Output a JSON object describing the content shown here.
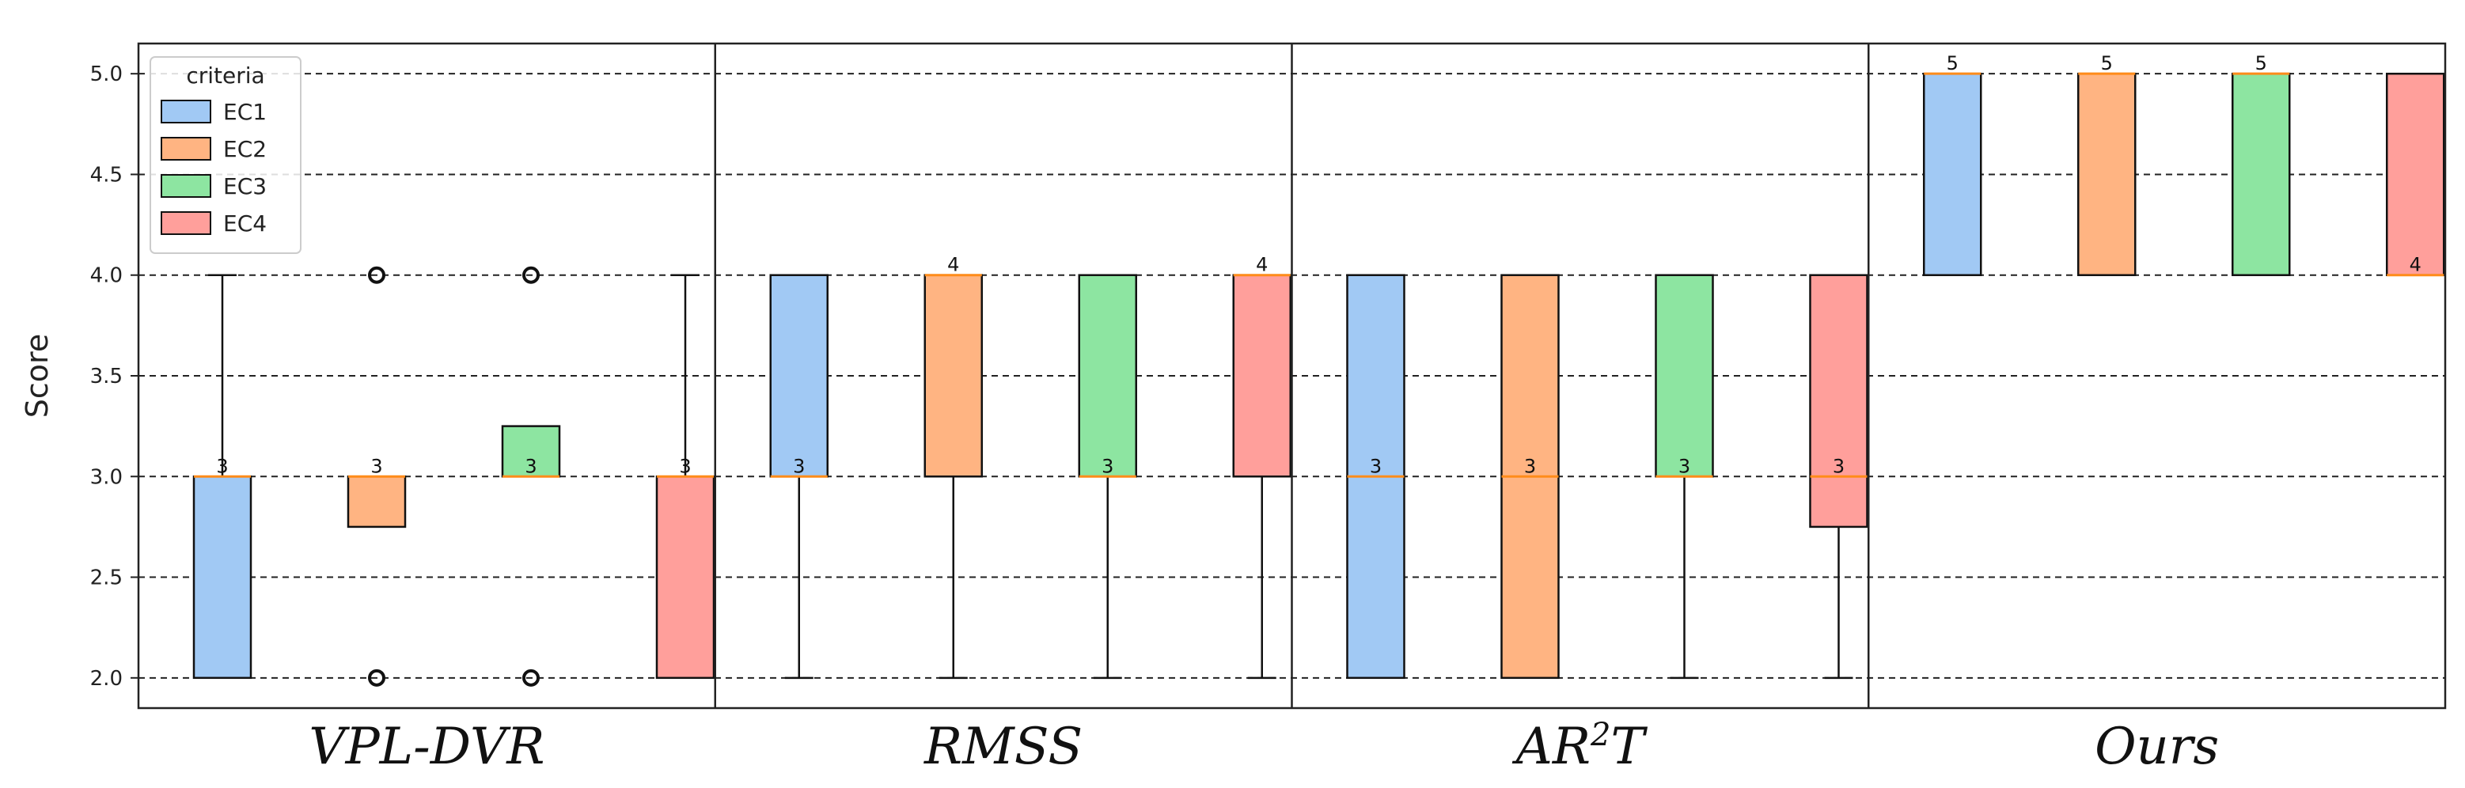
{
  "chart_data": {
    "type": "boxplot",
    "ylabel": "Score",
    "ylim": [
      1.85,
      5.15
    ],
    "yticks": [
      "2.0",
      "2.5",
      "3.0",
      "3.5",
      "4.0",
      "4.5",
      "5.0"
    ],
    "grid": "horizontal-dashed",
    "legend": {
      "title": "criteria",
      "placement": "top-left",
      "entries": [
        {
          "name": "EC1",
          "color": "#a1c9f4"
        },
        {
          "name": "EC2",
          "color": "#ffb482"
        },
        {
          "name": "EC3",
          "color": "#8de5a1"
        },
        {
          "name": "EC4",
          "color": "#ff9f9b"
        }
      ]
    },
    "median_color": "#ff8c1a",
    "groups": [
      {
        "name": "VPL-DVR",
        "name_parts": [
          {
            "text": "VPL-DVR",
            "sup": false
          }
        ],
        "boxes": [
          {
            "criterion": "EC1",
            "q1": 2.0,
            "q3": 3.0,
            "median": 3.0,
            "median_label": "3",
            "whisker_low": 2.0,
            "whisker_high": 4.0,
            "outliers": []
          },
          {
            "criterion": "EC2",
            "q1": 2.75,
            "q3": 3.0,
            "median": 3.0,
            "median_label": "3",
            "whisker_low": 2.75,
            "whisker_high": 3.0,
            "outliers": [
              4.0,
              2.0
            ]
          },
          {
            "criterion": "EC3",
            "q1": 3.0,
            "q3": 3.25,
            "median": 3.0,
            "median_label": "3",
            "whisker_low": 3.0,
            "whisker_high": 3.25,
            "outliers": [
              4.0,
              2.0
            ]
          },
          {
            "criterion": "EC4",
            "q1": 2.0,
            "q3": 3.0,
            "median": 3.0,
            "median_label": "3",
            "whisker_low": 2.0,
            "whisker_high": 4.0,
            "outliers": []
          }
        ]
      },
      {
        "name": "RMSS",
        "name_parts": [
          {
            "text": "RMSS",
            "sup": false
          }
        ],
        "boxes": [
          {
            "criterion": "EC1",
            "q1": 3.0,
            "q3": 4.0,
            "median": 3.0,
            "median_label": "3",
            "whisker_low": 2.0,
            "whisker_high": 4.0,
            "outliers": []
          },
          {
            "criterion": "EC2",
            "q1": 3.0,
            "q3": 4.0,
            "median": 4.0,
            "median_label": "4",
            "whisker_low": 2.0,
            "whisker_high": 4.0,
            "outliers": []
          },
          {
            "criterion": "EC3",
            "q1": 3.0,
            "q3": 4.0,
            "median": 3.0,
            "median_label": "3",
            "whisker_low": 2.0,
            "whisker_high": 4.0,
            "outliers": []
          },
          {
            "criterion": "EC4",
            "q1": 3.0,
            "q3": 4.0,
            "median": 4.0,
            "median_label": "4",
            "whisker_low": 2.0,
            "whisker_high": 4.0,
            "outliers": []
          }
        ]
      },
      {
        "name": "AR2T",
        "name_parts": [
          {
            "text": "AR",
            "sup": false
          },
          {
            "text": "2",
            "sup": true
          },
          {
            "text": "T",
            "sup": false
          }
        ],
        "boxes": [
          {
            "criterion": "EC1",
            "q1": 2.0,
            "q3": 4.0,
            "median": 3.0,
            "median_label": "3",
            "whisker_low": 2.0,
            "whisker_high": 4.0,
            "outliers": []
          },
          {
            "criterion": "EC2",
            "q1": 2.0,
            "q3": 4.0,
            "median": 3.0,
            "median_label": "3",
            "whisker_low": 2.0,
            "whisker_high": 4.0,
            "outliers": []
          },
          {
            "criterion": "EC3",
            "q1": 3.0,
            "q3": 4.0,
            "median": 3.0,
            "median_label": "3",
            "whisker_low": 2.0,
            "whisker_high": 4.0,
            "outliers": []
          },
          {
            "criterion": "EC4",
            "q1": 2.75,
            "q3": 4.0,
            "median": 3.0,
            "median_label": "3",
            "whisker_low": 2.0,
            "whisker_high": 4.0,
            "outliers": []
          }
        ]
      },
      {
        "name": "Ours",
        "name_parts": [
          {
            "text": "Ours",
            "sup": false
          }
        ],
        "boxes": [
          {
            "criterion": "EC1",
            "q1": 4.0,
            "q3": 5.0,
            "median": 5.0,
            "median_label": "5",
            "whisker_low": 4.0,
            "whisker_high": 5.0,
            "outliers": []
          },
          {
            "criterion": "EC2",
            "q1": 4.0,
            "q3": 5.0,
            "median": 5.0,
            "median_label": "5",
            "whisker_low": 4.0,
            "whisker_high": 5.0,
            "outliers": []
          },
          {
            "criterion": "EC3",
            "q1": 4.0,
            "q3": 5.0,
            "median": 5.0,
            "median_label": "5",
            "whisker_low": 4.0,
            "whisker_high": 5.0,
            "outliers": []
          },
          {
            "criterion": "EC4",
            "q1": 4.0,
            "q3": 5.0,
            "median": 4.0,
            "median_label": "4",
            "whisker_low": 4.0,
            "whisker_high": 5.0,
            "outliers": []
          }
        ]
      }
    ]
  }
}
